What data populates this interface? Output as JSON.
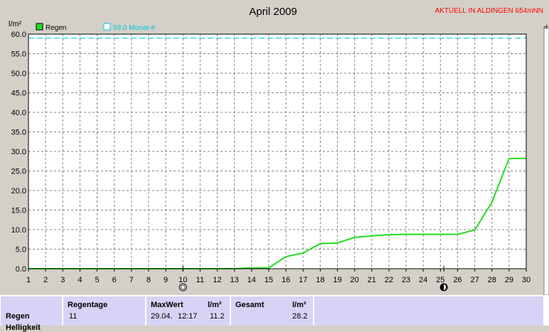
{
  "header": {
    "title": "April 2009",
    "site": "AKTUELL IN ALDINGEN 654mNN",
    "y_unit": "l/m²",
    "right_edge_label": "d"
  },
  "legend": {
    "rain_label": "Regen",
    "reference_label": "59.0 Monat-#"
  },
  "colors": {
    "background": "#d4d0c8",
    "plot_bg": "#ffffff",
    "rain_line": "#22dd22",
    "reference_line": "#00c8dc",
    "site_text": "#ff0000",
    "stats_bg": "#d6d3f6"
  },
  "moon_icons": [
    "first-quarter-moon-icon",
    "full-moon-icon"
  ],
  "chart_data": {
    "type": "line",
    "title": "April 2009",
    "ylabel": "l/m²",
    "x_ticks": [
      1,
      2,
      3,
      4,
      5,
      6,
      7,
      8,
      9,
      10,
      11,
      12,
      13,
      14,
      15,
      16,
      17,
      18,
      19,
      20,
      21,
      22,
      23,
      24,
      25,
      26,
      27,
      28,
      29,
      30
    ],
    "y_ticks": [
      "0.0",
      "5.0",
      "10.0",
      "15.0",
      "20.0",
      "25.0",
      "30.0",
      "35.0",
      "40.0",
      "45.0",
      "50.0",
      "55.0",
      "60.0"
    ],
    "xlim": [
      1,
      30
    ],
    "ylim": [
      0,
      60
    ],
    "grid": true,
    "reference_value": 59.0,
    "moon_days": [
      10,
      25.2
    ],
    "series": [
      {
        "name": "Regen",
        "x": [
          1,
          13,
          13.8,
          15,
          16,
          17,
          18,
          19,
          20,
          21,
          22,
          23,
          24,
          25,
          26,
          27,
          28,
          29,
          30
        ],
        "y": [
          0,
          0,
          0.2,
          0.2,
          3.1,
          4.0,
          6.4,
          6.6,
          8.0,
          8.4,
          8.7,
          8.8,
          8.8,
          8.8,
          8.8,
          9.9,
          17.0,
          28.2,
          28.2
        ]
      }
    ]
  },
  "stats": {
    "row_label": "Regen",
    "next_row_label": "Helligkeit",
    "regentage_label": "Regentage",
    "regentage_value": "11",
    "maxwert_label": "MaxWert",
    "maxwert_date": "29.04.",
    "maxwert_time": "12:17",
    "unit_label": "l/m²",
    "maxwert_value": "11.2",
    "gesamt_label": "Gesamt",
    "gesamt_unit": "l/m²",
    "gesamt_value": "28.2"
  }
}
